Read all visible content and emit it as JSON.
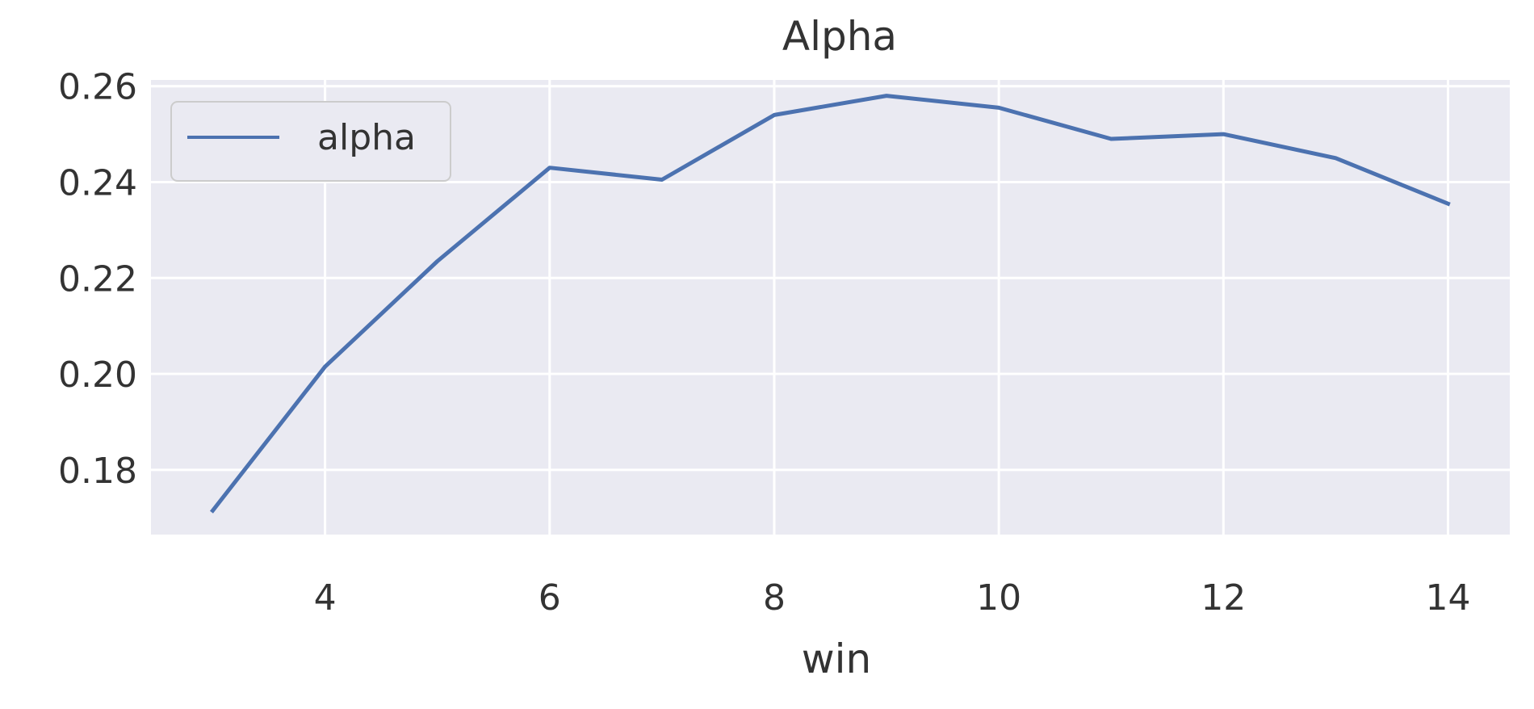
{
  "chart_data": {
    "type": "line",
    "title": "Alpha",
    "xlabel": "win",
    "ylabel": "",
    "x": [
      3,
      4,
      5,
      6,
      7,
      8,
      9,
      10,
      11,
      12,
      13,
      14
    ],
    "series": [
      {
        "name": "alpha",
        "color": "#4c72b0",
        "values": [
          0.1715,
          0.2015,
          0.2235,
          0.243,
          0.2405,
          0.254,
          0.258,
          0.2555,
          0.249,
          0.25,
          0.245,
          0.2355
        ]
      }
    ],
    "xlim": [
      2.45,
      14.55
    ],
    "ylim": [
      0.1665,
      0.2613
    ],
    "xticks": [
      4,
      6,
      8,
      10,
      12,
      14
    ],
    "xtick_labels": [
      "4",
      "6",
      "8",
      "10",
      "12",
      "14"
    ],
    "yticks": [
      0.18,
      0.2,
      0.22,
      0.24,
      0.26
    ],
    "ytick_labels": [
      "0.18",
      "0.20",
      "0.22",
      "0.24",
      "0.26"
    ],
    "grid": true,
    "legend_position": "upper-left",
    "background_color": "#eaeaf2",
    "grid_color": "#ffffff"
  }
}
